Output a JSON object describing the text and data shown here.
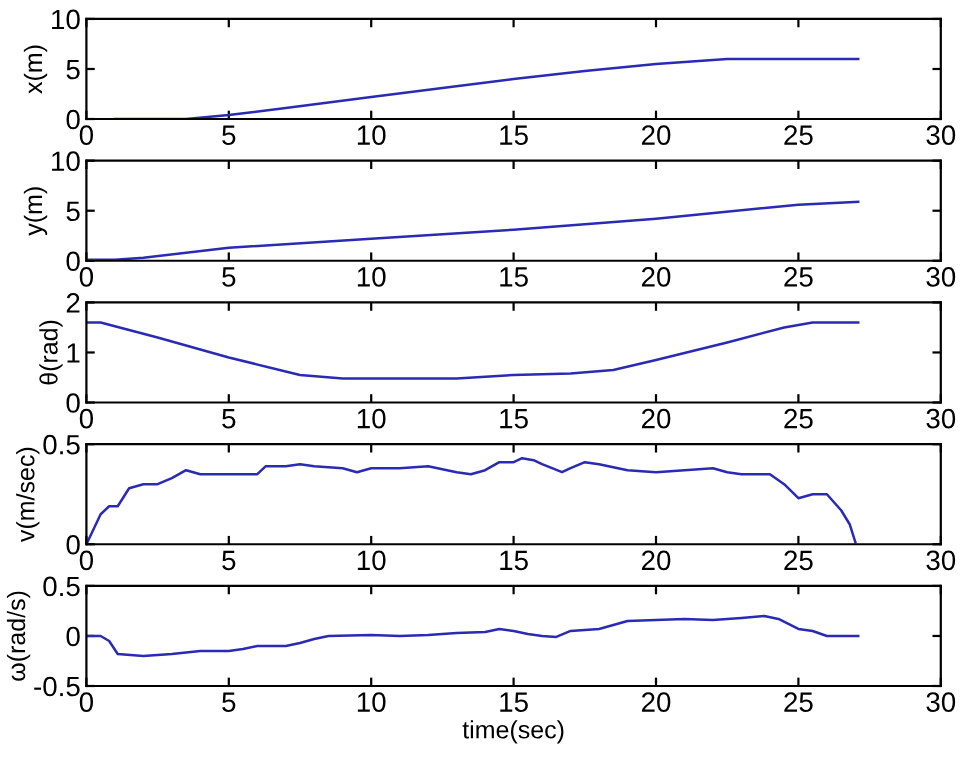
{
  "chart_data": [
    {
      "type": "line",
      "ylabel": "x(m)",
      "xlim": [
        0,
        30
      ],
      "xticks": [
        0,
        5,
        10,
        15,
        20,
        25,
        30
      ],
      "ylim": [
        0,
        10
      ],
      "yticks": [
        0,
        5,
        10
      ],
      "marker": "none",
      "line_style": "solid",
      "series": [
        {
          "color": "#2a2ab4",
          "x": [
            1,
            3.5,
            5,
            7,
            10,
            12.5,
            15,
            17.5,
            20,
            22.5,
            27.1
          ],
          "values": [
            0,
            0,
            0.4,
            1.1,
            2.2,
            3.1,
            4,
            4.8,
            5.5,
            6,
            6
          ]
        }
      ]
    },
    {
      "type": "line",
      "ylabel": "y(m)",
      "xlim": [
        0,
        30
      ],
      "xticks": [
        0,
        5,
        10,
        15,
        20,
        25,
        30
      ],
      "ylim": [
        0,
        10
      ],
      "yticks": [
        0,
        5,
        10
      ],
      "marker": "none",
      "line_style": "solid",
      "series": [
        {
          "color": "#2a2ab4",
          "x": [
            0,
            1,
            2,
            5,
            10,
            15,
            20,
            25,
            27.1
          ],
          "values": [
            0.1,
            0.1,
            0.3,
            1.3,
            2.2,
            3.1,
            4.2,
            5.6,
            5.9
          ]
        }
      ]
    },
    {
      "type": "line",
      "ylabel": "θ(rad)",
      "xlim": [
        0,
        30
      ],
      "xticks": [
        0,
        5,
        10,
        15,
        20,
        25,
        30
      ],
      "ylim": [
        0,
        2
      ],
      "yticks": [
        0,
        1,
        2
      ],
      "marker": "none",
      "line_style": "solid",
      "series": [
        {
          "color": "#2a2ab4",
          "x": [
            0,
            0.5,
            2.5,
            5,
            7.5,
            9,
            13,
            15,
            17,
            18.5,
            20,
            22.5,
            24.5,
            25.5,
            27.1
          ],
          "values": [
            1.6,
            1.6,
            1.3,
            0.9,
            0.55,
            0.48,
            0.48,
            0.55,
            0.58,
            0.65,
            0.85,
            1.2,
            1.5,
            1.6,
            1.6
          ]
        }
      ]
    },
    {
      "type": "line",
      "ylabel": "v(m/sec)",
      "xlim": [
        0,
        30
      ],
      "xticks": [
        0,
        5,
        10,
        15,
        20,
        25,
        30
      ],
      "ylim": [
        0,
        0.5
      ],
      "yticks": [
        0,
        0.5
      ],
      "marker": "none",
      "line_style": "solid",
      "series": [
        {
          "color": "#2a2ab4",
          "x": [
            0,
            0.5,
            0.8,
            1.1,
            1.5,
            2,
            2.5,
            3,
            3.5,
            4,
            5,
            6,
            6.3,
            7,
            7.5,
            8,
            9,
            9.5,
            10,
            11,
            12,
            13,
            13.5,
            14,
            14.5,
            15,
            15.3,
            15.7,
            16,
            16.7,
            17,
            17.5,
            18,
            19,
            20,
            21,
            22,
            22.5,
            23,
            24,
            24.5,
            25,
            25.5,
            26,
            26.5,
            26.8,
            27
          ],
          "values": [
            0,
            0.15,
            0.19,
            0.19,
            0.28,
            0.3,
            0.3,
            0.33,
            0.37,
            0.35,
            0.35,
            0.35,
            0.39,
            0.39,
            0.4,
            0.39,
            0.38,
            0.36,
            0.38,
            0.38,
            0.39,
            0.36,
            0.35,
            0.37,
            0.41,
            0.41,
            0.43,
            0.42,
            0.4,
            0.36,
            0.38,
            0.41,
            0.4,
            0.37,
            0.36,
            0.37,
            0.38,
            0.36,
            0.35,
            0.35,
            0.3,
            0.23,
            0.25,
            0.25,
            0.17,
            0.1,
            0.01
          ]
        }
      ]
    },
    {
      "type": "line",
      "ylabel": "ω(rad/s)",
      "xlabel": "time(sec)",
      "xlim": [
        0,
        30
      ],
      "xticks": [
        0,
        5,
        10,
        15,
        20,
        25,
        30
      ],
      "ylim": [
        -0.5,
        0.5
      ],
      "yticks": [
        -0.5,
        0,
        0.5
      ],
      "marker": "none",
      "line_style": "solid",
      "series": [
        {
          "color": "#2a2ab4",
          "x": [
            0,
            0.5,
            0.8,
            1.1,
            2,
            3,
            4,
            5,
            5.5,
            6,
            7,
            7.5,
            8,
            8.5,
            10,
            11,
            12,
            13,
            14,
            14.5,
            15,
            15.5,
            16,
            16.5,
            17,
            18,
            19,
            20,
            21,
            22,
            23,
            23.8,
            24.3,
            25,
            25.5,
            26,
            27.1
          ],
          "values": [
            0,
            0,
            -0.05,
            -0.18,
            -0.2,
            -0.18,
            -0.15,
            -0.15,
            -0.13,
            -0.1,
            -0.1,
            -0.07,
            -0.03,
            0,
            0.01,
            0,
            0.01,
            0.03,
            0.04,
            0.07,
            0.05,
            0.02,
            0,
            -0.01,
            0.05,
            0.07,
            0.15,
            0.16,
            0.17,
            0.16,
            0.18,
            0.2,
            0.17,
            0.07,
            0.05,
            0,
            0
          ]
        }
      ]
    }
  ]
}
